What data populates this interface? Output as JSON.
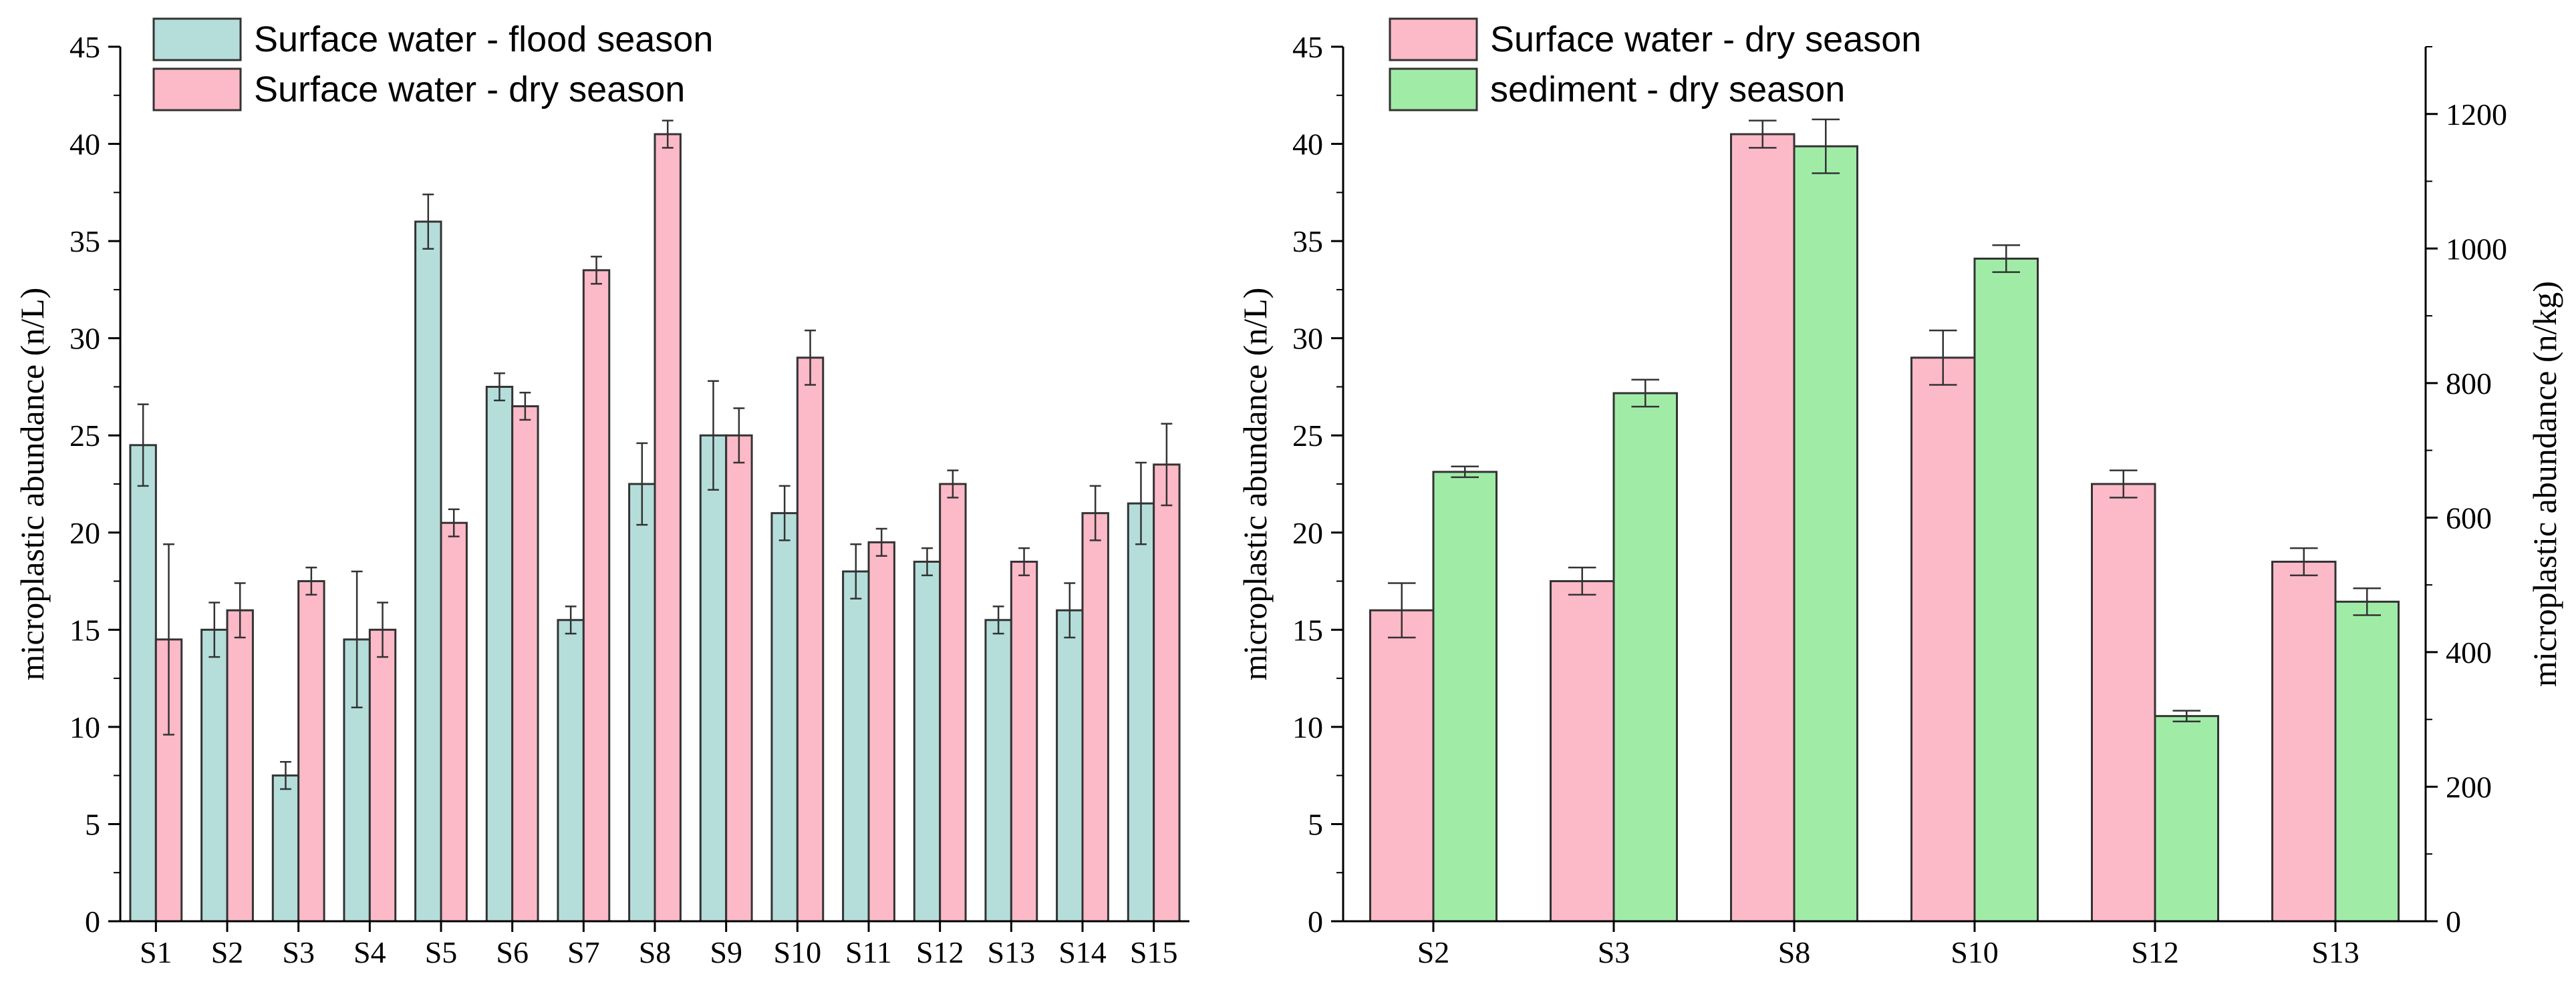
{
  "chart_data": [
    {
      "type": "bar",
      "title": "",
      "xlabel": "",
      "ylabel": "microplastic abundance (n/L)",
      "ylim": [
        0,
        45
      ],
      "yticks": [
        0,
        5,
        10,
        15,
        20,
        25,
        30,
        35,
        40,
        45
      ],
      "categories": [
        "S1",
        "S2",
        "S3",
        "S4",
        "S5",
        "S6",
        "S7",
        "S8",
        "S9",
        "S10",
        "S11",
        "S12",
        "S13",
        "S14",
        "S15"
      ],
      "legend_position": "top-left",
      "series": [
        {
          "name": "Surface water - flood season",
          "color": "#b5dedb",
          "values": [
            24.5,
            15.0,
            7.5,
            14.5,
            36.0,
            27.5,
            15.5,
            22.5,
            25.0,
            21.0,
            18.0,
            18.5,
            15.5,
            16.0,
            21.5
          ],
          "errors": [
            2.1,
            1.4,
            0.7,
            3.5,
            1.4,
            0.7,
            0.7,
            2.1,
            2.8,
            1.4,
            1.4,
            0.7,
            0.7,
            1.4,
            2.1
          ]
        },
        {
          "name": "Surface water - dry season",
          "color": "#fcb9c7",
          "values": [
            14.5,
            16.0,
            17.5,
            15.0,
            20.5,
            26.5,
            33.5,
            40.5,
            25.0,
            29.0,
            19.5,
            22.5,
            18.5,
            21.0,
            23.5
          ],
          "errors": [
            4.9,
            1.4,
            0.7,
            1.4,
            0.7,
            0.7,
            0.7,
            0.7,
            1.4,
            1.4,
            0.7,
            0.7,
            0.7,
            1.4,
            2.1
          ]
        }
      ]
    },
    {
      "type": "bar",
      "title": "",
      "xlabel": "",
      "ylabel": "microplastic abundance (n/L)",
      "ylabel_right": "microplastic abundance (n/kg)",
      "ylim": [
        0,
        45
      ],
      "yticks": [
        0,
        5,
        10,
        15,
        20,
        25,
        30,
        35,
        40,
        45
      ],
      "ylim_right": [
        0,
        1300
      ],
      "yticks_right": [
        0,
        200,
        400,
        600,
        800,
        1000,
        1200
      ],
      "categories": [
        "S2",
        "S3",
        "S8",
        "S10",
        "S12",
        "S13"
      ],
      "legend_position": "top-left",
      "series": [
        {
          "name": "Surface water - dry season",
          "axis": "left",
          "color": "#fcb9c7",
          "values": [
            16.0,
            17.5,
            40.5,
            29.0,
            22.5,
            18.5
          ],
          "errors": [
            1.4,
            0.7,
            0.7,
            1.4,
            0.7,
            0.7
          ]
        },
        {
          "name": "sediment - dry season",
          "axis": "right",
          "color": "#a0eca7",
          "values": [
            668,
            785,
            1152,
            985,
            305,
            475
          ],
          "errors": [
            8,
            20,
            40,
            20,
            8,
            20
          ]
        }
      ]
    }
  ]
}
